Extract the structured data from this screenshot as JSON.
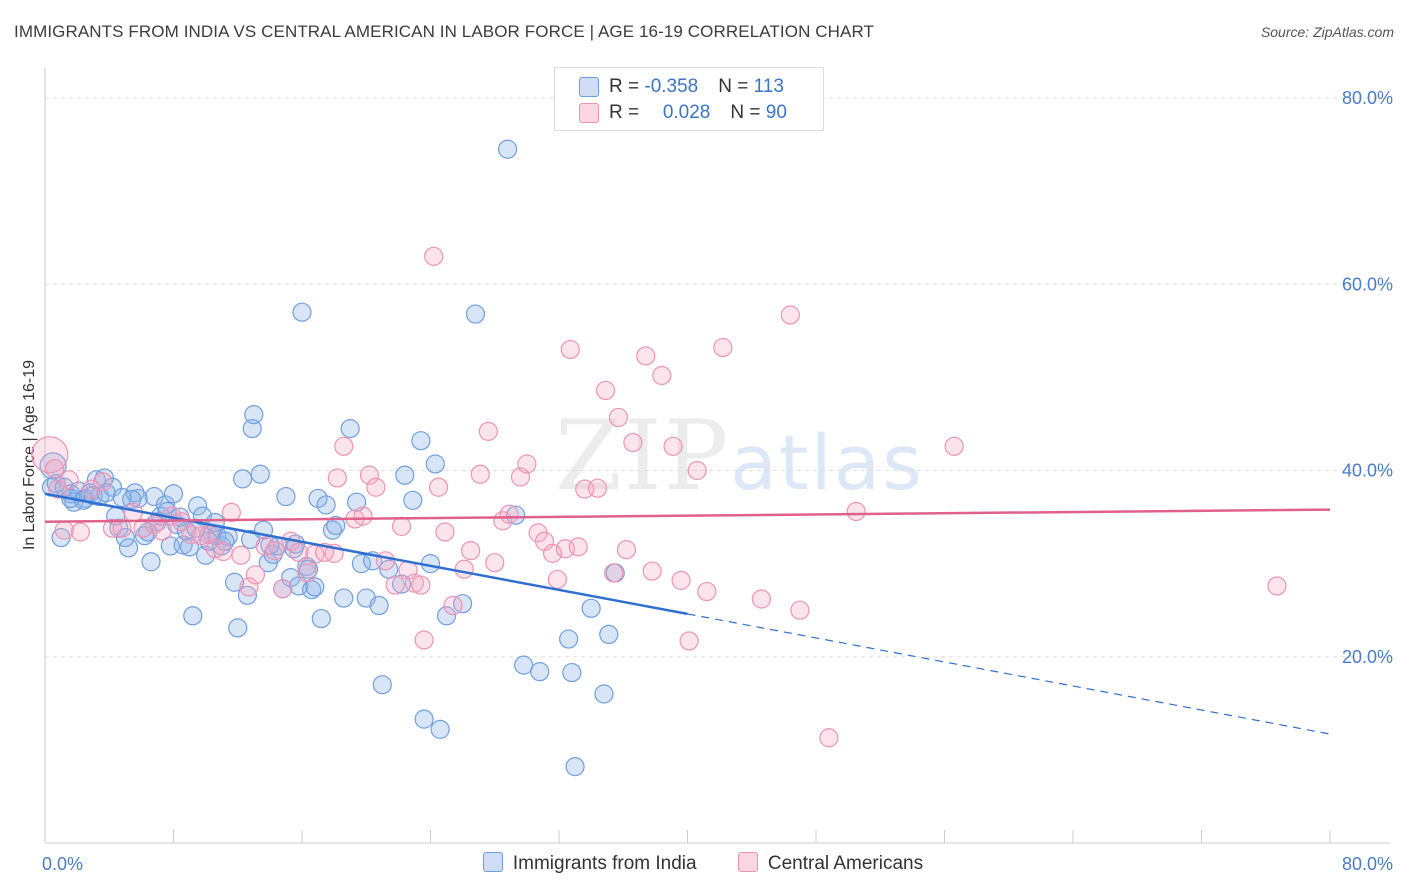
{
  "title": "IMMIGRANTS FROM INDIA VS CENTRAL AMERICAN IN LABOR FORCE | AGE 16-19 CORRELATION CHART",
  "source": "Source: ZipAtlas.com",
  "watermark": {
    "zip": "ZIP",
    "atlas": "atlas"
  },
  "legend": {
    "rows": [
      {
        "r_label": "R = ",
        "r_value": "-0.358",
        "n_label": "N = ",
        "n_value": "113",
        "color": "#8fb4e8"
      },
      {
        "r_label": "R = ",
        "r_value": "0.028",
        "n_label": "N = ",
        "n_value": "90",
        "color": "#f4a6c0"
      }
    ]
  },
  "chart_data": {
    "type": "scatter",
    "title": "IMMIGRANTS FROM INDIA VS CENTRAL AMERICAN IN LABOR FORCE | AGE 16-19 CORRELATION CHART",
    "xlabel": "",
    "ylabel": "In Labor Force | Age 16-19",
    "xlim": [
      0,
      80
    ],
    "ylim": [
      0,
      80
    ],
    "x_tick_labels": [
      "0.0%",
      "80.0%"
    ],
    "y_tick_labels": [
      "20.0%",
      "40.0%",
      "60.0%",
      "80.0%"
    ],
    "y_ticks": [
      20,
      40,
      60,
      80
    ],
    "grid": true,
    "legend_position": "top-center",
    "series": [
      {
        "name": "Immigrants from India",
        "color": "#6f9fe0",
        "fill": "rgba(143,180,232,0.35)",
        "trend": {
          "x0": 0,
          "y0": 37.5,
          "x1": 40,
          "y1": 24.6,
          "dash_x1": 80,
          "dash_y1": 11.7,
          "color": "#2f6fd0"
        },
        "points": [
          [
            0.4,
            38.2
          ],
          [
            0.5,
            40.5
          ],
          [
            0.7,
            38.6
          ],
          [
            1.0,
            32.8
          ],
          [
            1.2,
            38.2
          ],
          [
            1.6,
            37.5
          ],
          [
            1.8,
            36.6
          ],
          [
            2.1,
            37.8
          ],
          [
            2.5,
            37.0
          ],
          [
            2.8,
            37.6
          ],
          [
            3.2,
            39.0
          ],
          [
            3.4,
            37.2
          ],
          [
            3.7,
            39.2
          ],
          [
            4.2,
            38.2
          ],
          [
            4.4,
            35.1
          ],
          [
            4.6,
            33.8
          ],
          [
            5.0,
            32.8
          ],
          [
            5.2,
            31.7
          ],
          [
            5.6,
            37.6
          ],
          [
            5.8,
            37.0
          ],
          [
            6.2,
            33.0
          ],
          [
            6.6,
            30.2
          ],
          [
            6.8,
            37.2
          ],
          [
            7.0,
            34.5
          ],
          [
            7.2,
            35.1
          ],
          [
            7.5,
            36.3
          ],
          [
            7.8,
            31.9
          ],
          [
            8.0,
            37.5
          ],
          [
            8.2,
            34.2
          ],
          [
            8.6,
            32.0
          ],
          [
            8.8,
            33.5
          ],
          [
            9.0,
            31.8
          ],
          [
            9.2,
            24.4
          ],
          [
            9.5,
            36.2
          ],
          [
            9.8,
            35.1
          ],
          [
            10.0,
            30.9
          ],
          [
            10.4,
            33.2
          ],
          [
            10.7,
            33.0
          ],
          [
            11.0,
            31.9
          ],
          [
            11.4,
            32.9
          ],
          [
            11.8,
            28.0
          ],
          [
            12.0,
            23.1
          ],
          [
            12.3,
            39.1
          ],
          [
            12.6,
            26.6
          ],
          [
            12.9,
            44.5
          ],
          [
            13.0,
            46.0
          ],
          [
            13.4,
            39.6
          ],
          [
            13.6,
            33.6
          ],
          [
            13.9,
            30.1
          ],
          [
            14.2,
            31.0
          ],
          [
            14.5,
            31.9
          ],
          [
            14.8,
            27.3
          ],
          [
            15.0,
            37.2
          ],
          [
            15.3,
            28.5
          ],
          [
            15.5,
            31.6
          ],
          [
            15.8,
            27.6
          ],
          [
            16.0,
            57.0
          ],
          [
            16.3,
            29.7
          ],
          [
            16.6,
            27.2
          ],
          [
            16.8,
            27.5
          ],
          [
            17.0,
            37.0
          ],
          [
            17.2,
            24.1
          ],
          [
            17.5,
            36.3
          ],
          [
            17.9,
            33.6
          ],
          [
            18.1,
            34.1
          ],
          [
            18.6,
            26.3
          ],
          [
            19.0,
            44.5
          ],
          [
            19.4,
            36.6
          ],
          [
            19.7,
            30.0
          ],
          [
            20.0,
            26.3
          ],
          [
            20.4,
            30.3
          ],
          [
            20.8,
            25.5
          ],
          [
            21.0,
            17.0
          ],
          [
            21.4,
            29.4
          ],
          [
            22.2,
            27.8
          ],
          [
            22.4,
            39.5
          ],
          [
            22.9,
            36.8
          ],
          [
            23.4,
            43.2
          ],
          [
            23.6,
            13.3
          ],
          [
            24.0,
            30.0
          ],
          [
            24.3,
            40.7
          ],
          [
            24.6,
            12.2
          ],
          [
            25.0,
            24.4
          ],
          [
            26.0,
            25.7
          ],
          [
            26.8,
            56.8
          ],
          [
            28.8,
            74.5
          ],
          [
            29.3,
            35.2
          ],
          [
            29.8,
            19.1
          ],
          [
            30.8,
            18.4
          ],
          [
            32.6,
            21.9
          ],
          [
            32.8,
            18.3
          ],
          [
            33.0,
            8.2
          ],
          [
            34.0,
            25.2
          ],
          [
            34.8,
            16.0
          ],
          [
            35.1,
            22.4
          ],
          [
            35.5,
            29.0
          ],
          [
            1.6,
            37.0
          ],
          [
            2.4,
            36.8
          ],
          [
            3.0,
            37.3
          ],
          [
            4.8,
            37.1
          ],
          [
            6.4,
            33.4
          ],
          [
            9.4,
            33.8
          ],
          [
            10.2,
            32.4
          ],
          [
            11.2,
            32.4
          ],
          [
            12.8,
            32.6
          ],
          [
            14.0,
            32.0
          ],
          [
            15.6,
            32.1
          ],
          [
            3.8,
            37.6
          ],
          [
            5.4,
            36.9
          ],
          [
            7.6,
            35.6
          ],
          [
            8.4,
            35.0
          ],
          [
            10.6,
            34.4
          ],
          [
            16.4,
            29.4
          ]
        ]
      },
      {
        "name": "Central Americans",
        "color": "#ee93b3",
        "fill": "rgba(244,166,192,0.30)",
        "trend": {
          "x0": 0,
          "y0": 34.5,
          "x1": 80,
          "y1": 35.8,
          "color": "#e0608c"
        },
        "points": [
          [
            0.3,
            41.7
          ],
          [
            0.8,
            38.0
          ],
          [
            1.5,
            39.0
          ],
          [
            2.2,
            33.4
          ],
          [
            2.9,
            38.0
          ],
          [
            3.6,
            38.8
          ],
          [
            4.2,
            33.8
          ],
          [
            4.8,
            33.8
          ],
          [
            5.5,
            35.5
          ],
          [
            6.1,
            33.8
          ],
          [
            6.8,
            34.2
          ],
          [
            7.3,
            33.5
          ],
          [
            7.9,
            35.1
          ],
          [
            8.5,
            34.5
          ],
          [
            9.1,
            33.1
          ],
          [
            9.7,
            33.0
          ],
          [
            10.2,
            33.1
          ],
          [
            10.6,
            31.6
          ],
          [
            11.1,
            31.3
          ],
          [
            11.6,
            35.5
          ],
          [
            12.2,
            30.9
          ],
          [
            12.7,
            27.5
          ],
          [
            13.1,
            28.8
          ],
          [
            13.7,
            31.9
          ],
          [
            14.3,
            31.4
          ],
          [
            14.8,
            27.3
          ],
          [
            15.3,
            32.4
          ],
          [
            15.8,
            31.2
          ],
          [
            16.3,
            29.0
          ],
          [
            16.8,
            31.0
          ],
          [
            17.4,
            31.2
          ],
          [
            18.0,
            31.1
          ],
          [
            18.2,
            39.2
          ],
          [
            18.6,
            42.6
          ],
          [
            19.3,
            34.8
          ],
          [
            19.8,
            35.1
          ],
          [
            20.2,
            39.5
          ],
          [
            20.6,
            38.2
          ],
          [
            21.2,
            30.3
          ],
          [
            21.8,
            27.7
          ],
          [
            22.2,
            34.0
          ],
          [
            22.6,
            29.3
          ],
          [
            23.0,
            27.9
          ],
          [
            23.4,
            27.7
          ],
          [
            23.6,
            21.8
          ],
          [
            24.2,
            63.0
          ],
          [
            24.5,
            38.2
          ],
          [
            24.9,
            33.4
          ],
          [
            25.4,
            25.5
          ],
          [
            26.1,
            29.4
          ],
          [
            26.5,
            31.4
          ],
          [
            27.1,
            39.6
          ],
          [
            27.6,
            44.2
          ],
          [
            28.0,
            30.1
          ],
          [
            28.5,
            34.6
          ],
          [
            28.9,
            35.3
          ],
          [
            29.6,
            39.3
          ],
          [
            30.0,
            40.7
          ],
          [
            30.7,
            33.3
          ],
          [
            31.1,
            32.4
          ],
          [
            31.6,
            31.1
          ],
          [
            31.9,
            28.3
          ],
          [
            32.4,
            31.6
          ],
          [
            32.7,
            53.0
          ],
          [
            33.2,
            31.8
          ],
          [
            33.6,
            38.0
          ],
          [
            34.4,
            38.1
          ],
          [
            34.9,
            48.6
          ],
          [
            35.4,
            29.0
          ],
          [
            35.7,
            45.7
          ],
          [
            36.2,
            31.5
          ],
          [
            36.6,
            43.0
          ],
          [
            37.4,
            52.3
          ],
          [
            37.8,
            29.2
          ],
          [
            38.4,
            50.2
          ],
          [
            39.1,
            42.6
          ],
          [
            39.6,
            28.2
          ],
          [
            40.1,
            21.7
          ],
          [
            40.6,
            40.0
          ],
          [
            41.2,
            27.0
          ],
          [
            42.2,
            53.2
          ],
          [
            44.6,
            26.2
          ],
          [
            46.4,
            56.7
          ],
          [
            47.0,
            25.0
          ],
          [
            48.8,
            11.3
          ],
          [
            50.5,
            35.6
          ],
          [
            56.6,
            42.6
          ],
          [
            76.7,
            27.6
          ],
          [
            0.6,
            40.2
          ],
          [
            1.2,
            33.6
          ]
        ]
      }
    ]
  },
  "bottom_legend": {
    "items": [
      {
        "label": "Immigrants from India",
        "color": "#8fb4e8"
      },
      {
        "label": "Central Americans",
        "color": "#f4a6c0"
      }
    ]
  }
}
